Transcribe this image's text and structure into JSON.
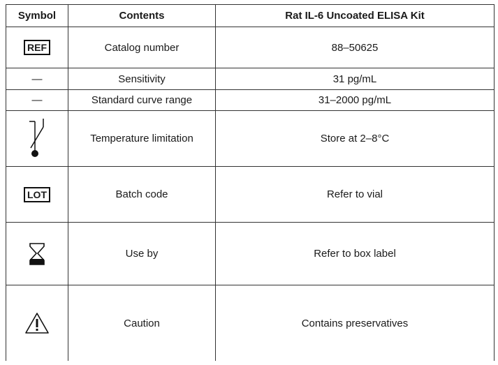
{
  "table": {
    "headers": [
      "Symbol",
      "Contents",
      "Rat IL-6 Uncoated ELISA Kit"
    ],
    "rows": [
      {
        "symbol": "REF",
        "contents": "Catalog number",
        "value": "88–50625"
      },
      {
        "symbol": "—",
        "contents": "Sensitivity",
        "value": "31 pg/mL"
      },
      {
        "symbol": "—",
        "contents": "Standard curve range",
        "value": "31–2000 pg/mL"
      },
      {
        "contents": "Temperature limitation",
        "value": "Store at 2–8°C"
      },
      {
        "symbol": "LOT",
        "contents": "Batch code",
        "value": "Refer to vial"
      },
      {
        "contents": "Use by",
        "value": "Refer to box label"
      },
      {
        "contents": "Caution",
        "value": "Contains preservatives"
      }
    ]
  }
}
